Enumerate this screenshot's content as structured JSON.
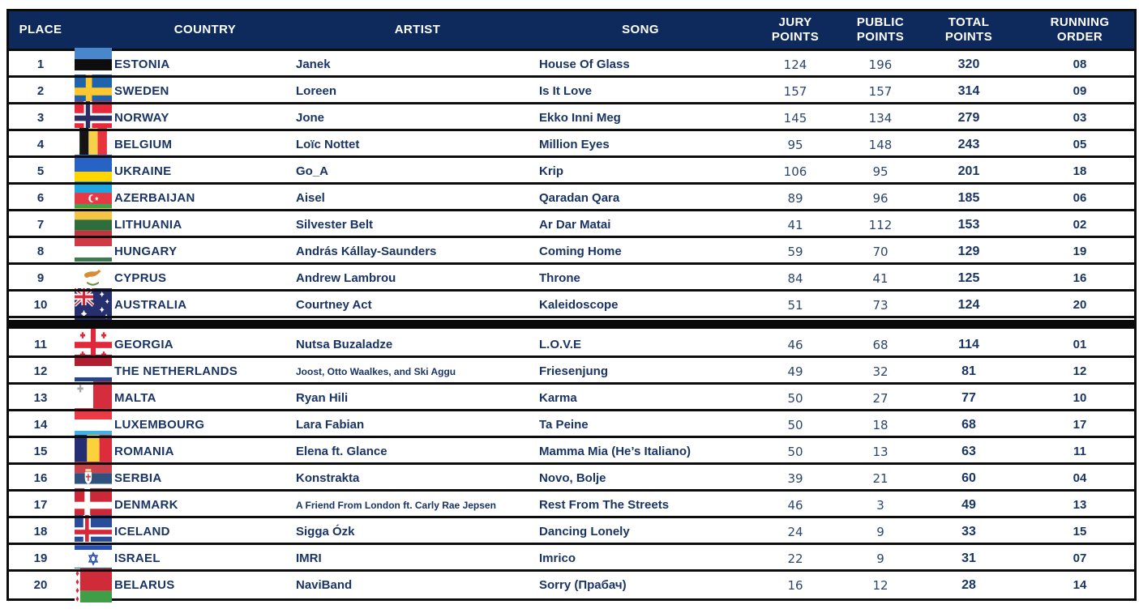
{
  "table": {
    "header": {
      "place": "PLACE",
      "country": "COUNTRY",
      "artist": "ARTIST",
      "song": "SONG",
      "jury": "JURY\nPOINTS",
      "public": "PUBLIC\nPOINTS",
      "total": "TOTAL\nPOINTS",
      "running": "RUNNING\nORDER"
    },
    "cutoff_after_index": 9,
    "rows": [
      {
        "place": "1",
        "flag": "estonia",
        "country": "ESTONIA",
        "artist": "Janek",
        "song": "House Of Glass",
        "jury": "124",
        "public": "196",
        "total": "320",
        "running": "08"
      },
      {
        "place": "2",
        "flag": "sweden",
        "country": "SWEDEN",
        "artist": "Loreen",
        "song": "Is It Love",
        "jury": "157",
        "public": "157",
        "total": "314",
        "running": "09"
      },
      {
        "place": "3",
        "flag": "norway",
        "country": "NORWAY",
        "artist": "Jone",
        "song": "Ekko Inni Meg",
        "jury": "145",
        "public": "134",
        "total": "279",
        "running": "03"
      },
      {
        "place": "4",
        "flag": "belgium",
        "country": "BELGIUM",
        "artist": "Loïc Nottet",
        "song": "Million Eyes",
        "jury": "95",
        "public": "148",
        "total": "243",
        "running": "05"
      },
      {
        "place": "5",
        "flag": "ukraine",
        "country": "UKRAINE",
        "artist": "Go_A",
        "song": "Krip",
        "jury": "106",
        "public": "95",
        "total": "201",
        "running": "18"
      },
      {
        "place": "6",
        "flag": "azerbaijan",
        "country": "AZERBAIJAN",
        "artist": "Aisel",
        "song": "Qaradan Qara",
        "jury": "89",
        "public": "96",
        "total": "185",
        "running": "06"
      },
      {
        "place": "7",
        "flag": "lithuania",
        "country": "LITHUANIA",
        "artist": "Silvester Belt",
        "song": "Ar Dar Matai",
        "jury": "41",
        "public": "112",
        "total": "153",
        "running": "02"
      },
      {
        "place": "8",
        "flag": "hungary",
        "country": "HUNGARY",
        "artist": "András Kállay-Saunders",
        "song": "Coming Home",
        "jury": "59",
        "public": "70",
        "total": "129",
        "running": "19"
      },
      {
        "place": "9",
        "flag": "cyprus",
        "country": "CYPRUS",
        "artist": "Andrew Lambrou",
        "song": "Throne",
        "jury": "84",
        "public": "41",
        "total": "125",
        "running": "16"
      },
      {
        "place": "10",
        "flag": "australia",
        "country": "AUSTRALIA",
        "artist": "Courtney Act",
        "song": "Kaleidoscope",
        "jury": "51",
        "public": "73",
        "total": "124",
        "running": "20"
      },
      {
        "place": "11",
        "flag": "georgia",
        "country": "GEORGIA",
        "artist": "Nutsa Buzaladze",
        "song": "L.O.V.E",
        "jury": "46",
        "public": "68",
        "total": "114",
        "running": "01"
      },
      {
        "place": "12",
        "flag": "netherlands",
        "country": "THE NETHERLANDS",
        "artist": "Joost, Otto Waalkes, and Ski Aggu",
        "song": "Friesenjung",
        "jury": "49",
        "public": "32",
        "total": "81",
        "running": "12"
      },
      {
        "place": "13",
        "flag": "malta",
        "country": "MALTA",
        "artist": "Ryan Hili",
        "song": "Karma",
        "jury": "50",
        "public": "27",
        "total": "77",
        "running": "10"
      },
      {
        "place": "14",
        "flag": "luxembourg",
        "country": "LUXEMBOURG",
        "artist": "Lara Fabian",
        "song": "Ta Peine",
        "jury": "50",
        "public": "18",
        "total": "68",
        "running": "17"
      },
      {
        "place": "15",
        "flag": "romania",
        "country": "ROMANIA",
        "artist": "Elena ft. Glance",
        "song": "Mamma Mia (He’s Italiano)",
        "jury": "50",
        "public": "13",
        "total": "63",
        "running": "11"
      },
      {
        "place": "16",
        "flag": "serbia",
        "country": "SERBIA",
        "artist": "Konstrakta",
        "song": "Novo, Bolje",
        "jury": "39",
        "public": "21",
        "total": "60",
        "running": "04"
      },
      {
        "place": "17",
        "flag": "denmark",
        "country": "DENMARK",
        "artist": "A Friend From London ft. Carly Rae Jepsen",
        "song": "Rest From The Streets",
        "jury": "46",
        "public": "3",
        "total": "49",
        "running": "13"
      },
      {
        "place": "18",
        "flag": "iceland",
        "country": "ICELAND",
        "artist": "Sigga Ózk",
        "song": "Dancing Lonely",
        "jury": "24",
        "public": "9",
        "total": "33",
        "running": "15"
      },
      {
        "place": "19",
        "flag": "israel",
        "country": "ISRAEL",
        "artist": "IMRI",
        "song": "Imrico",
        "jury": "22",
        "public": "9",
        "total": "31",
        "running": "07"
      },
      {
        "place": "20",
        "flag": "belarus",
        "country": "BELARUS",
        "artist": "NaviBand",
        "song": "Sorry (Прабач)",
        "jury": "16",
        "public": "12",
        "total": "28",
        "running": "14"
      }
    ]
  },
  "colors": {
    "header_bg": "#0e2a5c",
    "row_text": "#1a3464",
    "number_text": "#2e466e",
    "border": "#0c0c0c",
    "cutoff_bar": "#0a0a0a"
  }
}
